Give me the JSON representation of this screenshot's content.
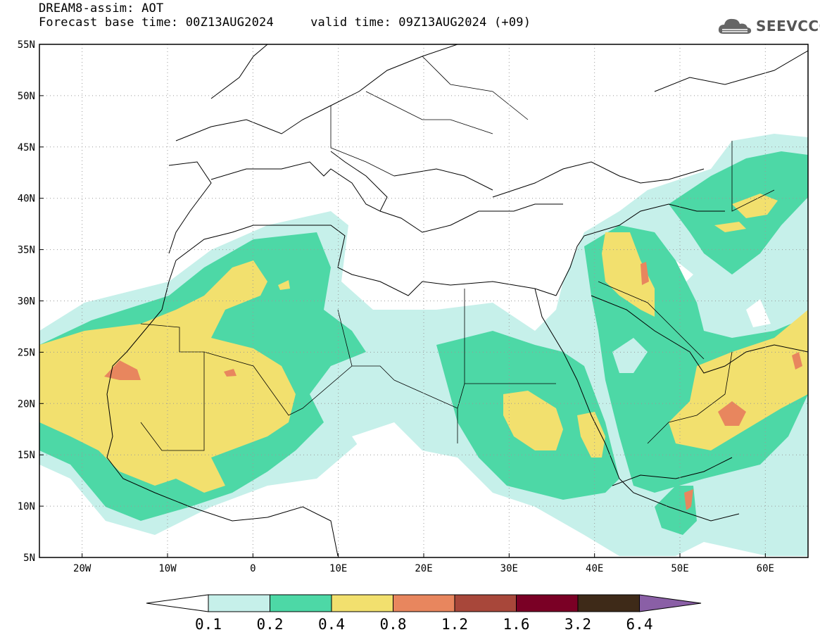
{
  "header": {
    "line1": "DREAM8-assim: AOT",
    "line2": "Forecast base time: 00Z13AUG2024     valid time: 09Z13AUG2024 (+09)",
    "logo_text": "SEEVCCC"
  },
  "map": {
    "product": "Aerosol optical thickness forecast",
    "lon_range": [
      -25,
      65
    ],
    "lat_range": [
      5,
      55
    ],
    "lon_ticks": [
      {
        "v": -20,
        "label": "20W"
      },
      {
        "v": -10,
        "label": "10W"
      },
      {
        "v": 0,
        "label": "0"
      },
      {
        "v": 10,
        "label": "10E"
      },
      {
        "v": 20,
        "label": "20E"
      },
      {
        "v": 30,
        "label": "30E"
      },
      {
        "v": 40,
        "label": "40E"
      },
      {
        "v": 50,
        "label": "50E"
      },
      {
        "v": 60,
        "label": "60E"
      }
    ],
    "lat_ticks": [
      {
        "v": 55,
        "label": "55N"
      },
      {
        "v": 50,
        "label": "50N"
      },
      {
        "v": 45,
        "label": "45N"
      },
      {
        "v": 40,
        "label": "40N"
      },
      {
        "v": 35,
        "label": "35N"
      },
      {
        "v": 30,
        "label": "30N"
      },
      {
        "v": 25,
        "label": "25N"
      },
      {
        "v": 20,
        "label": "20N"
      },
      {
        "v": 15,
        "label": "15N"
      },
      {
        "v": 10,
        "label": "10N"
      },
      {
        "v": 5,
        "label": "5N"
      }
    ],
    "gridlines": "dotted"
  },
  "legend": {
    "labels": [
      "0.1",
      "0.2",
      "0.4",
      "0.8",
      "1.2",
      "1.6",
      "3.2",
      "6.4"
    ],
    "colors": [
      "#ffffff",
      "#c6f0ea",
      "#4dd8a6",
      "#f2e06e",
      "#e8865e",
      "#a8473a",
      "#7a0025",
      "#3e2a18",
      "#8a5fa6"
    ]
  }
}
